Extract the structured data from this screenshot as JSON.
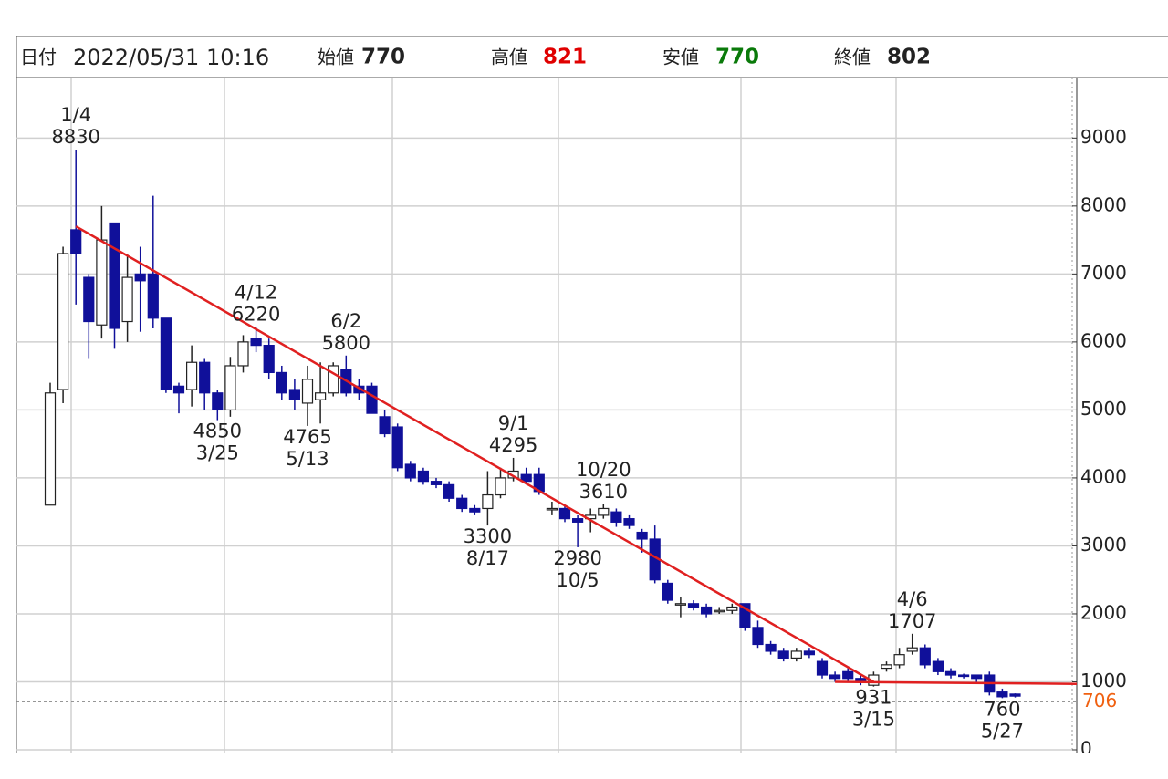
{
  "header": {
    "date_label": "日付",
    "datetime": "2022/05/31 10:16",
    "open_label": "始値",
    "open": 770,
    "high_label": "高値",
    "high": 821,
    "high_color": "#e00000",
    "low_label": "安値",
    "low": 770,
    "low_color": "#0a7a0a",
    "close_label": "終値",
    "close": 802
  },
  "chart_data": {
    "type": "candlestick",
    "categories": [
      null,
      null,
      null,
      null,
      null,
      null,
      null,
      null,
      null,
      null,
      null,
      null,
      null,
      null,
      null,
      null,
      null,
      null,
      null,
      null,
      null,
      null,
      null,
      null,
      null,
      null,
      null,
      null,
      null,
      null,
      null,
      null,
      null,
      null,
      null,
      null,
      null,
      null,
      null,
      null,
      null,
      null,
      null,
      null,
      null,
      null,
      null,
      null,
      null,
      null,
      null,
      null,
      null,
      null,
      null,
      null,
      null,
      null,
      null,
      null,
      null,
      null,
      null,
      null,
      null,
      null,
      null,
      null,
      null,
      null,
      null,
      null,
      null,
      null,
      null,
      null
    ],
    "open": [
      3600,
      5300,
      7650,
      6950,
      6250,
      7750,
      6300,
      7000,
      7000,
      6350,
      5350,
      5300,
      5700,
      5250,
      5000,
      5650,
      6050,
      5950,
      5550,
      5300,
      5100,
      5150,
      5250,
      5600,
      5350,
      5350,
      4900,
      4750,
      4200,
      4100,
      3950,
      3900,
      3700,
      3550,
      3550,
      3750,
      4000,
      4050,
      4050,
      3550,
      3550,
      3400,
      3400,
      3450,
      3500,
      3400,
      3200,
      3100,
      2450,
      2150,
      2150,
      2100,
      2050,
      2050,
      2150,
      1800,
      1550,
      1450,
      1350,
      1450,
      1300,
      1100,
      1150,
      1050,
      950,
      1200,
      1250,
      1450,
      1500,
      1300,
      1150,
      1100,
      1100,
      1100,
      850,
      820
    ],
    "high": [
      5400,
      7400,
      8830,
      7000,
      8000,
      7750,
      7300,
      7400,
      8150,
      6350,
      5400,
      5950,
      5750,
      5300,
      5780,
      6100,
      6220,
      6050,
      5650,
      5450,
      5650,
      5700,
      5700,
      5800,
      5450,
      5400,
      5000,
      4800,
      4250,
      4150,
      4000,
      3950,
      3750,
      3600,
      4100,
      4150,
      4295,
      4150,
      4150,
      3650,
      3600,
      3450,
      3550,
      3610,
      3550,
      3450,
      3250,
      3300,
      2500,
      2250,
      2200,
      2150,
      2100,
      2150,
      2150,
      1900,
      1600,
      1500,
      1500,
      1500,
      1350,
      1150,
      1200,
      1100,
      1150,
      1300,
      1500,
      1707,
      1550,
      1350,
      1200,
      1120,
      1100,
      1150,
      900,
      830
    ],
    "low": [
      3600,
      5100,
      6550,
      5750,
      6050,
      5900,
      6000,
      6150,
      6200,
      5250,
      4950,
      5050,
      5000,
      4850,
      4900,
      5550,
      5850,
      5450,
      5150,
      5000,
      4765,
      4800,
      5200,
      5200,
      5150,
      4950,
      4600,
      4100,
      3950,
      3900,
      3850,
      3650,
      3500,
      3450,
      3300,
      3700,
      3950,
      3900,
      3750,
      3450,
      3350,
      2980,
      3200,
      3400,
      3280,
      3250,
      2900,
      2450,
      2150,
      1950,
      2050,
      1950,
      2000,
      2000,
      1750,
      1500,
      1400,
      1300,
      1300,
      1350,
      1050,
      1000,
      1000,
      950,
      931,
      1150,
      1200,
      1400,
      1200,
      1100,
      1050,
      1050,
      1000,
      800,
      760,
      770
    ],
    "close": [
      5250,
      7300,
      7300,
      6300,
      7500,
      6200,
      6950,
      6900,
      6350,
      5300,
      5250,
      5700,
      5250,
      5000,
      5650,
      6000,
      5950,
      5550,
      5250,
      5150,
      5450,
      5250,
      5650,
      5250,
      5250,
      4950,
      4650,
      4150,
      4000,
      3950,
      3900,
      3700,
      3550,
      3500,
      3750,
      4000,
      4100,
      3950,
      3800,
      3550,
      3400,
      3350,
      3450,
      3550,
      3350,
      3300,
      3100,
      2500,
      2200,
      2150,
      2100,
      2000,
      2050,
      2100,
      1800,
      1550,
      1450,
      1350,
      1450,
      1400,
      1100,
      1050,
      1050,
      1000,
      1100,
      1250,
      1400,
      1500,
      1250,
      1150,
      1100,
      1080,
      1050,
      850,
      780,
      790
    ],
    "up_color": "#ffffff",
    "down_color": "#10109a",
    "ylim": [
      0,
      9890
    ],
    "yticks": [
      0,
      1000,
      2000,
      3000,
      4000,
      5000,
      6000,
      7000,
      8000,
      9000
    ],
    "grid": true,
    "annotations": [
      {
        "date": "1/4",
        "value": 8830,
        "position": "above"
      },
      {
        "date": "4/12",
        "value": 6220,
        "position": "above"
      },
      {
        "date": "6/2",
        "value": 5800,
        "position": "above"
      },
      {
        "date": "9/1",
        "value": 4295,
        "position": "above"
      },
      {
        "date": "10/20",
        "value": 3610,
        "position": "above"
      },
      {
        "date": "4/6",
        "value": 1707,
        "position": "above"
      },
      {
        "date": "3/25",
        "value": 4850,
        "position": "below"
      },
      {
        "date": "5/13",
        "value": 4765,
        "position": "below"
      },
      {
        "date": "8/17",
        "value": 3300,
        "position": "below"
      },
      {
        "date": "10/5",
        "value": 2980,
        "position": "below"
      },
      {
        "date": "3/15",
        "value": 931,
        "position": "below"
      },
      {
        "date": "5/27",
        "value": 760,
        "position": "below"
      }
    ],
    "trend_lines": [
      {
        "color": "#e02020",
        "points": [
          [
            2,
            7700
          ],
          [
            64,
            1000
          ]
        ]
      },
      {
        "color": "#e02020",
        "points": [
          [
            61,
            1000
          ],
          [
            80,
            970
          ]
        ]
      }
    ],
    "current_price": {
      "value": 706,
      "color": "#f06010"
    }
  }
}
